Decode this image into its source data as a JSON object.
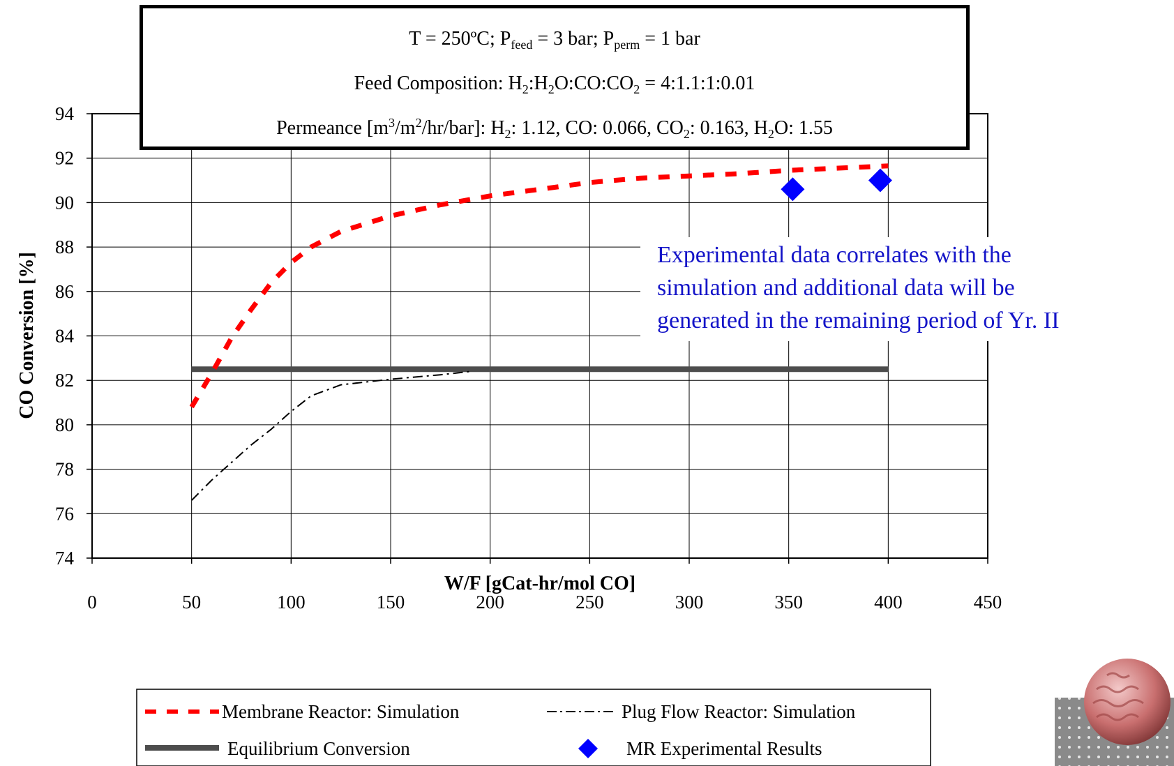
{
  "conditions_box": {
    "line1": {
      "t": "T = 250ºC; P",
      "feed_sub": "feed",
      "mid": " = 3 bar; P",
      "perm_sub": "perm",
      "end": " = 1 bar"
    },
    "line2": {
      "a": "Feed Composition:  H",
      "s1": "2",
      "b": ":H",
      "s2": "2",
      "c": "O:CO:CO",
      "s3": "2",
      "d": " = 4:1.1:1:0.01"
    },
    "line3": {
      "a": "Permeance [m",
      "sup1": "3",
      "b": "/m",
      "sup2": "2",
      "c": "/hr/bar]:  H",
      "s1": "2",
      "d": ": 1.12, CO: 0.066, CO",
      "s2": "2",
      "e": ": 0.163, H",
      "s3": "2",
      "f": "O: 1.55"
    }
  },
  "annotation": {
    "line1": "Experimental data correlates with the",
    "line2": "simulation and additional data will be",
    "line3": "generated in the remaining period of Yr. II"
  },
  "chart_data": {
    "type": "line",
    "xlabel": "W/F [gCat-hr/mol CO]",
    "ylabel": "CO Conversion [%]",
    "xlim": [
      0,
      450
    ],
    "ylim": [
      74,
      94
    ],
    "x_ticks": [
      0,
      50,
      100,
      150,
      200,
      250,
      300,
      350,
      400,
      450
    ],
    "y_ticks": [
      74,
      76,
      78,
      80,
      82,
      84,
      86,
      88,
      90,
      92,
      94
    ],
    "grid": "horizontal and vertical major gridlines",
    "series": [
      {
        "name": "Membrane Reactor: Simulation",
        "style": "dashed",
        "color": "#ff0000",
        "x": [
          50,
          60,
          70,
          80,
          90,
          100,
          110,
          125,
          150,
          175,
          200,
          225,
          250,
          275,
          300,
          325,
          350,
          375,
          400
        ],
        "y": [
          80.8,
          82.3,
          83.9,
          85.2,
          86.4,
          87.3,
          88.0,
          88.7,
          89.4,
          89.9,
          90.3,
          90.6,
          90.9,
          91.1,
          91.2,
          91.3,
          91.45,
          91.55,
          91.65
        ]
      },
      {
        "name": "Plug Flow Reactor: Simulation",
        "style": "dash-dot",
        "color": "#000000",
        "x": [
          50,
          60,
          70,
          80,
          90,
          100,
          110,
          125,
          150,
          175,
          190
        ],
        "y": [
          76.6,
          77.5,
          78.3,
          79.1,
          79.8,
          80.6,
          81.3,
          81.8,
          82.05,
          82.25,
          82.4
        ]
      },
      {
        "name": "Equilibrium Conversion",
        "style": "solid-thick",
        "color": "#4d4d4d",
        "x": [
          50,
          400
        ],
        "y": [
          82.5,
          82.5
        ]
      },
      {
        "name": "MR Experimental Results",
        "style": "markers",
        "marker": "diamond",
        "color": "#0000ff",
        "x": [
          352,
          396
        ],
        "y": [
          90.6,
          91.0
        ]
      }
    ]
  }
}
